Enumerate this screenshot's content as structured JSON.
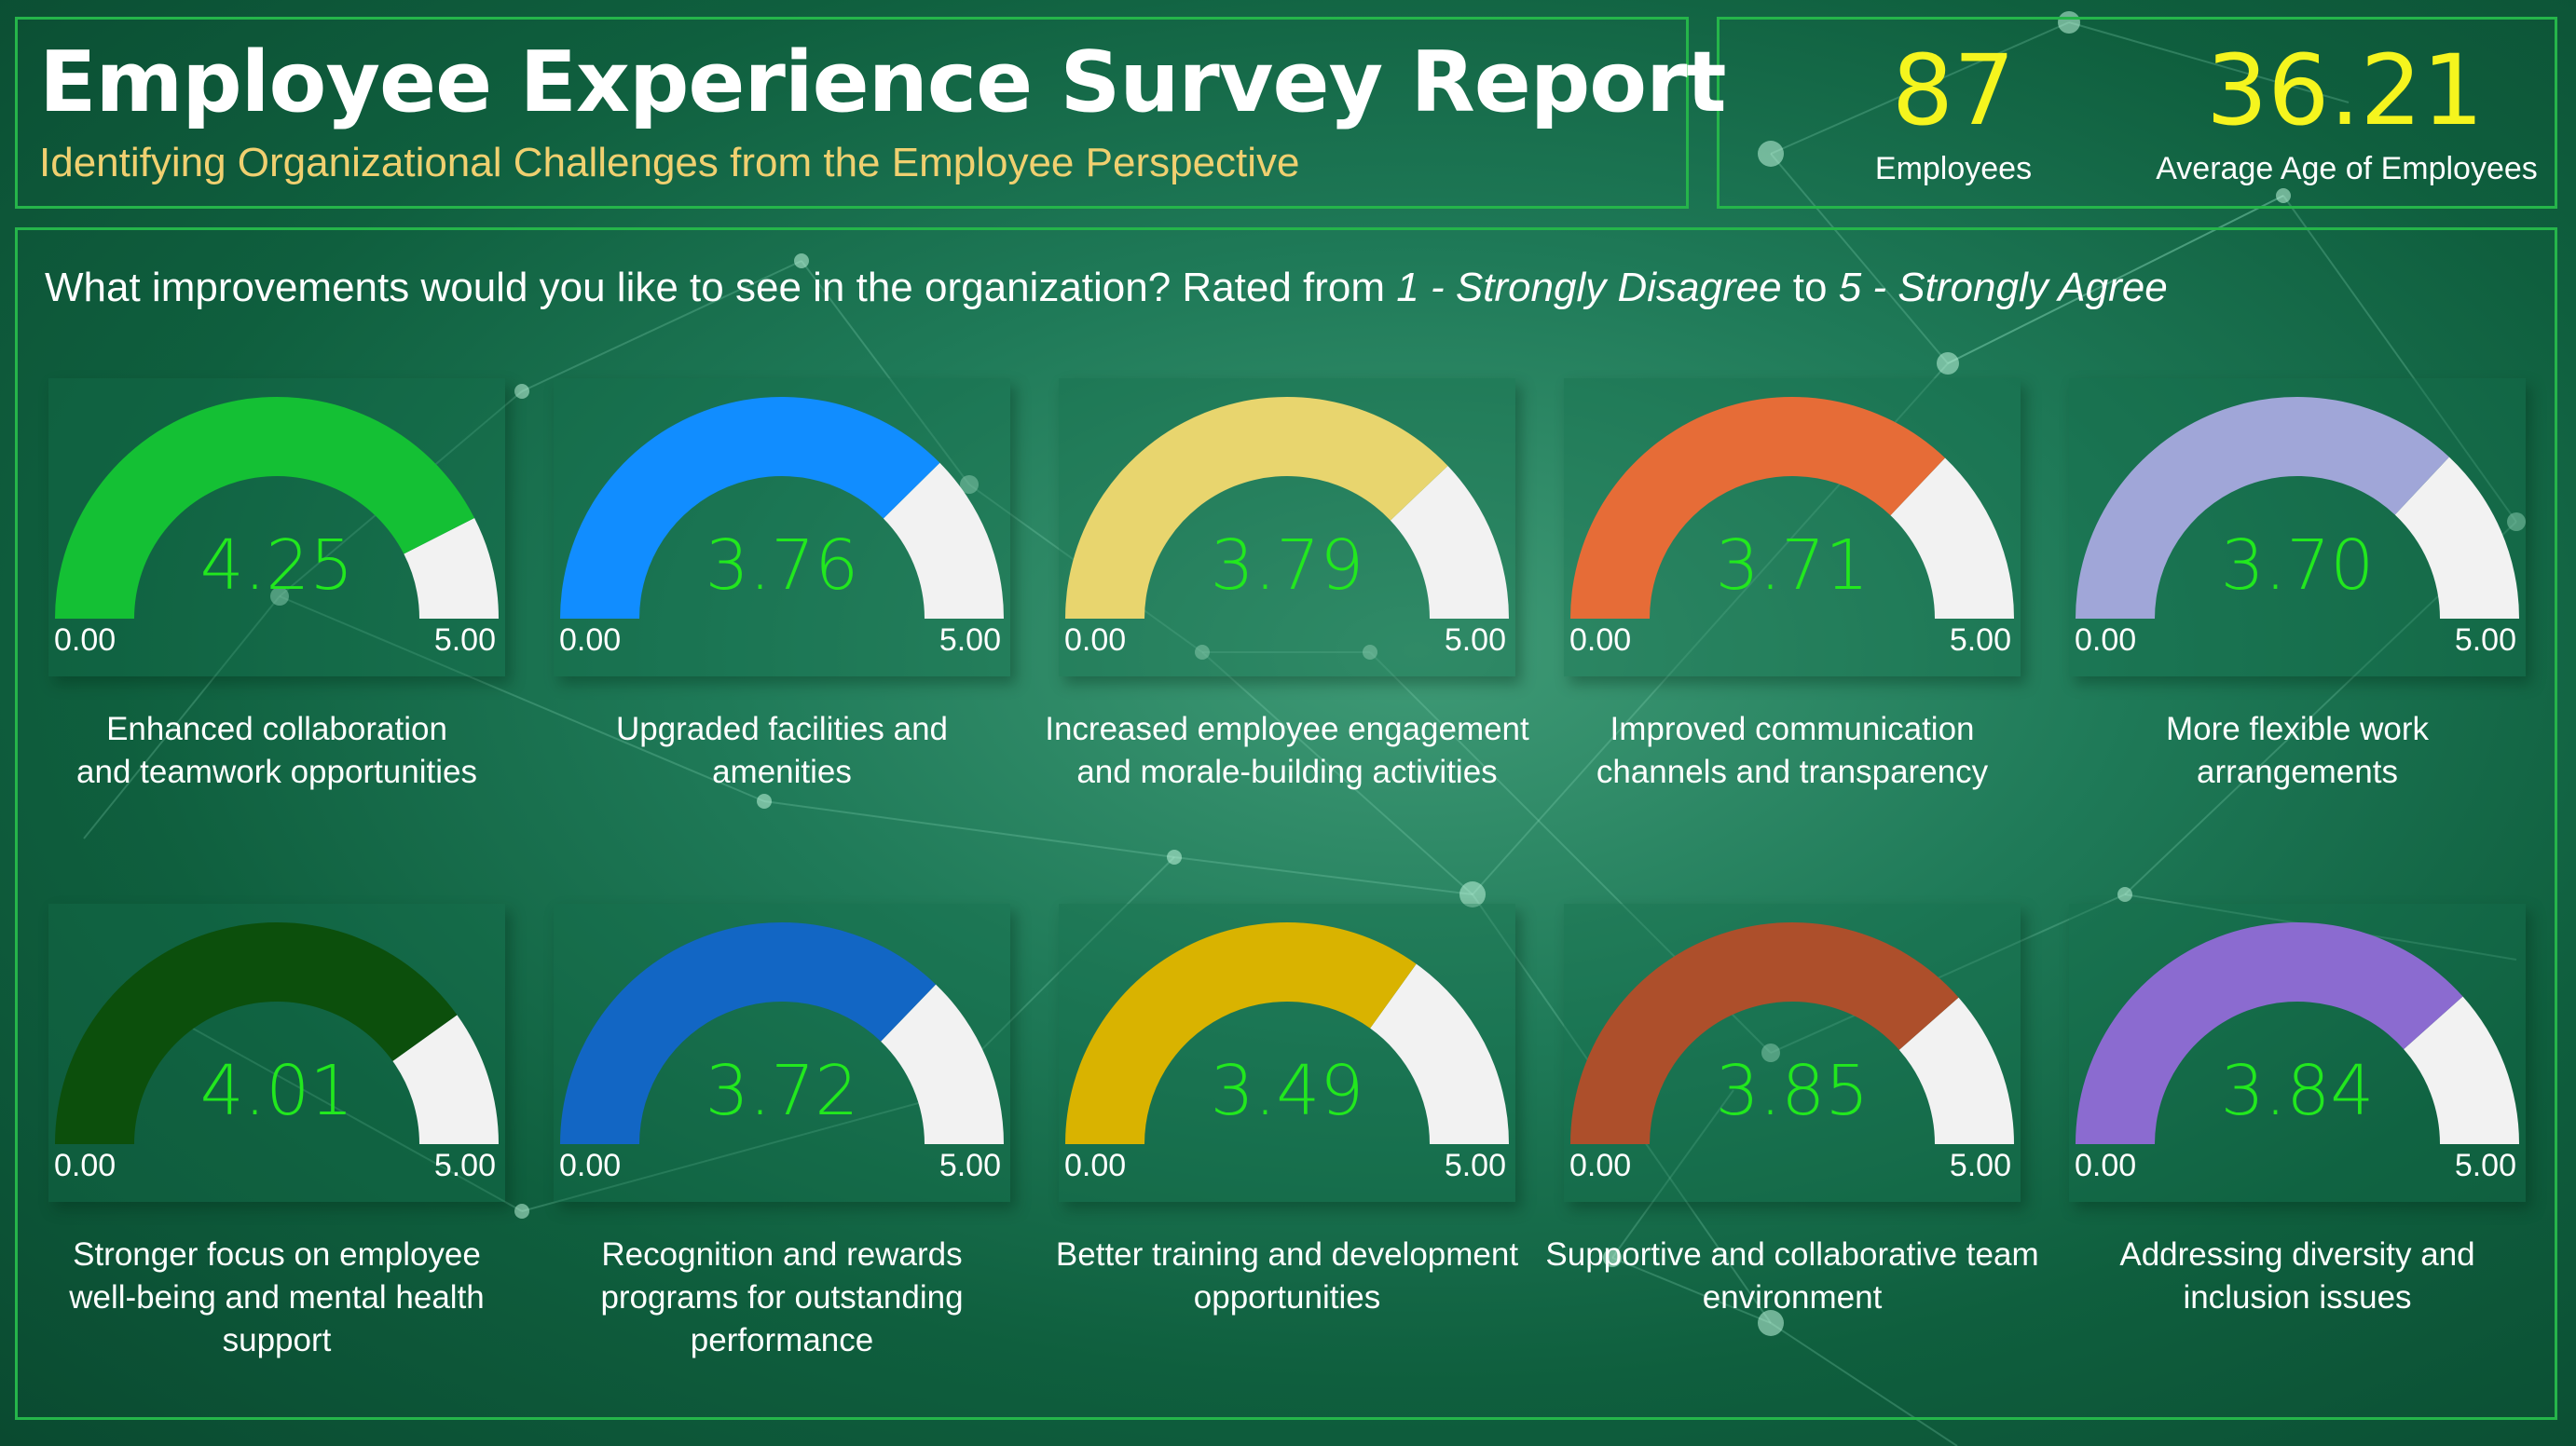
{
  "header": {
    "title": "Employee Experience Survey Report",
    "subtitle": "Identifying Organizational Challenges from the Employee Perspective"
  },
  "kpis": [
    {
      "value": "87",
      "label": "Employees"
    },
    {
      "value": "36.21",
      "label": "Average Age of Employees"
    }
  ],
  "question": {
    "text": "What improvements would you like to see in the organization? Rated from ",
    "scale_low": "1 - Strongly Disagree",
    "connector": " to ",
    "scale_high": "5 - Strongly Agree"
  },
  "colors": {
    "panel_border": "#25b54a",
    "value_text": "#22e81e",
    "kpi_value": "#f5f51e",
    "subtitle": "#f0d070",
    "gauge_track": "#f2f2f2"
  },
  "chart_data": [
    {
      "type": "gauge",
      "value": 4.25,
      "value_label": "4.25",
      "min": 0,
      "max": 5,
      "min_label": "0.00",
      "max_label": "5.00",
      "caption": [
        "Enhanced collaboration",
        "and teamwork opportunities"
      ],
      "color": "#14c034"
    },
    {
      "type": "gauge",
      "value": 3.76,
      "value_label": "3.76",
      "min": 0,
      "max": 5,
      "min_label": "0.00",
      "max_label": "5.00",
      "caption": [
        "Upgraded facilities and",
        "amenities"
      ],
      "color": "#118dff"
    },
    {
      "type": "gauge",
      "value": 3.79,
      "value_label": "3.79",
      "min": 0,
      "max": 5,
      "min_label": "0.00",
      "max_label": "5.00",
      "caption": [
        "Increased employee engagement",
        "and morale-building activities"
      ],
      "color": "#e8d56e"
    },
    {
      "type": "gauge",
      "value": 3.71,
      "value_label": "3.71",
      "min": 0,
      "max": 5,
      "min_label": "0.00",
      "max_label": "5.00",
      "caption": [
        "Improved communication",
        "channels and transparency"
      ],
      "color": "#e66c37"
    },
    {
      "type": "gauge",
      "value": 3.7,
      "value_label": "3.70",
      "min": 0,
      "max": 5,
      "min_label": "0.00",
      "max_label": "5.00",
      "caption": [
        "More flexible work",
        "arrangements"
      ],
      "color": "#a0a6d8"
    },
    {
      "type": "gauge",
      "value": 4.01,
      "value_label": "4.01",
      "min": 0,
      "max": 5,
      "min_label": "0.00",
      "max_label": "5.00",
      "caption": [
        "Stronger focus on employee",
        "well-being and mental health",
        "support"
      ],
      "color": "#0c4f0c"
    },
    {
      "type": "gauge",
      "value": 3.72,
      "value_label": "3.72",
      "min": 0,
      "max": 5,
      "min_label": "0.00",
      "max_label": "5.00",
      "caption": [
        "Recognition and rewards",
        "programs for outstanding",
        "performance"
      ],
      "color": "#1266c4"
    },
    {
      "type": "gauge",
      "value": 3.49,
      "value_label": "3.49",
      "min": 0,
      "max": 5,
      "min_label": "0.00",
      "max_label": "5.00",
      "caption": [
        "Better training and development",
        "opportunities"
      ],
      "color": "#d9b300"
    },
    {
      "type": "gauge",
      "value": 3.85,
      "value_label": "3.85",
      "min": 0,
      "max": 5,
      "min_label": "0.00",
      "max_label": "5.00",
      "caption": [
        "Supportive and collaborative team",
        "environment"
      ],
      "color": "#ad4f2b"
    },
    {
      "type": "gauge",
      "value": 3.84,
      "value_label": "3.84",
      "min": 0,
      "max": 5,
      "min_label": "0.00",
      "max_label": "5.00",
      "caption": [
        "Addressing diversity and",
        "inclusion issues"
      ],
      "color": "#8b6bd0"
    }
  ]
}
